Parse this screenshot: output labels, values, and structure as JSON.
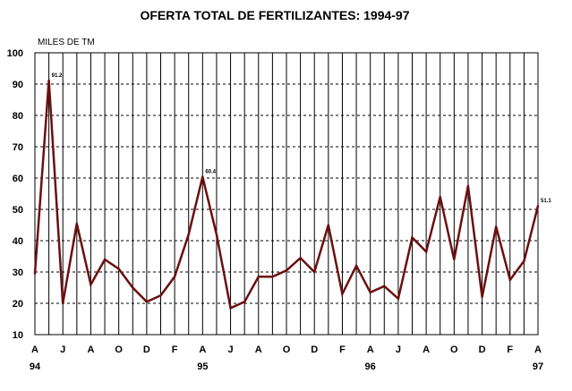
{
  "chart_data": {
    "type": "line",
    "title": "OFERTA TOTAL DE FERTILIZANTES: 1994-97",
    "ylabel": "MILES DE TM",
    "xlabel": "",
    "ylim": [
      10,
      100
    ],
    "yticks": [
      10,
      20,
      30,
      40,
      50,
      60,
      70,
      80,
      90,
      100
    ],
    "grid": true,
    "x_tick_labels": [
      "A",
      "J",
      "A",
      "O",
      "D",
      "F",
      "A",
      "J",
      "A",
      "O",
      "D",
      "F",
      "A",
      "J",
      "A",
      "O",
      "D",
      "F",
      "A"
    ],
    "x_year_labels": [
      {
        "index": 0,
        "text": "94"
      },
      {
        "index": 12,
        "text": "95"
      },
      {
        "index": 24,
        "text": "96"
      },
      {
        "index": 36,
        "text": "97"
      }
    ],
    "series_color": "#6b0f0f",
    "series": [
      {
        "values": [
          29.5,
          91.2,
          20.0,
          45.5,
          26.0,
          34.0,
          31.0,
          25.0,
          20.5,
          22.5,
          28.5,
          42.0,
          60.4,
          42.0,
          18.5,
          20.5,
          28.5,
          28.5,
          30.5,
          34.5,
          30.0,
          45.0,
          23.0,
          32.0,
          23.5,
          25.5,
          21.5,
          41.0,
          36.5,
          54.0,
          34.0,
          57.5,
          22.0,
          44.5,
          27.5,
          33.5,
          51.1
        ]
      }
    ],
    "data_labels": [
      {
        "index": 1,
        "text": "91.2"
      },
      {
        "index": 12,
        "text": "60.4"
      },
      {
        "index": 36,
        "text": "51.1"
      }
    ]
  }
}
